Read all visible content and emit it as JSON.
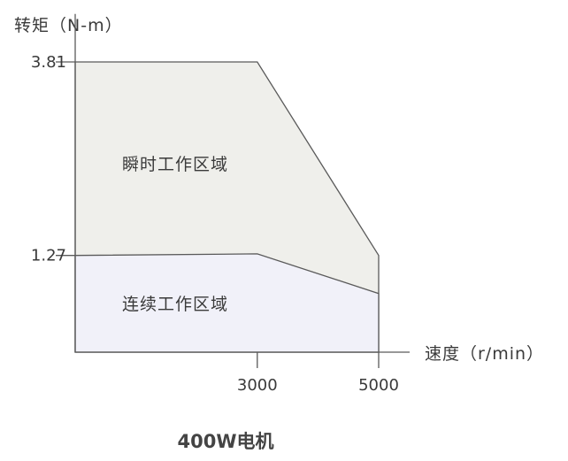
{
  "chart_data": {
    "type": "area",
    "title": "400W电机",
    "xlabel": "速度（r/min）",
    "ylabel": "转矩（N-m）",
    "x_ticks": [
      "3000",
      "5000"
    ],
    "y_ticks": [
      "3.81",
      "1.27"
    ],
    "xlim": [
      0,
      6000
    ],
    "ylim": [
      0,
      4.44
    ],
    "regions": [
      {
        "name": "瞬时工作区域",
        "color": "#efefeb",
        "points": [
          [
            0,
            0
          ],
          [
            0,
            3.81
          ],
          [
            3000,
            3.81
          ],
          [
            5000,
            1.27
          ],
          [
            5000,
            0
          ]
        ]
      },
      {
        "name": "连续工作区域",
        "color": "#f1f1f9",
        "points": [
          [
            0,
            0
          ],
          [
            0,
            1.27
          ],
          [
            3000,
            1.29
          ],
          [
            5000,
            0.77
          ],
          [
            5000,
            0
          ]
        ]
      }
    ]
  }
}
